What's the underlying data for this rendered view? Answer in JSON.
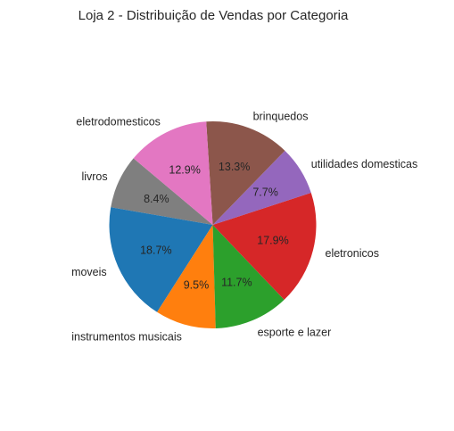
{
  "chart_data": {
    "type": "pie",
    "title": "Loja 2 - Distribuição de Vendas por Categoria",
    "start_angle_deg": 140,
    "direction": "counterclockwise",
    "slices": [
      {
        "label": "livros",
        "value": 8.4,
        "pct_label": "8.4%",
        "color": "#7f7f7f"
      },
      {
        "label": "moveis",
        "value": 18.7,
        "pct_label": "18.7%",
        "color": "#1f77b4"
      },
      {
        "label": "instrumentos musicais",
        "value": 9.5,
        "pct_label": "9.5%",
        "color": "#ff7f0e"
      },
      {
        "label": "esporte e lazer",
        "value": 11.7,
        "pct_label": "11.7%",
        "color": "#2ca02c"
      },
      {
        "label": "eletronicos",
        "value": 17.9,
        "pct_label": "17.9%",
        "color": "#d62728"
      },
      {
        "label": "utilidades domesticas",
        "value": 7.7,
        "pct_label": "7.7%",
        "color": "#9467bd"
      },
      {
        "label": "brinquedos",
        "value": 13.3,
        "pct_label": "13.3%",
        "color": "#8c564b"
      },
      {
        "label": "eletrodomesticos",
        "value": 12.9,
        "pct_label": "12.9%",
        "color": "#e377c2"
      }
    ]
  }
}
